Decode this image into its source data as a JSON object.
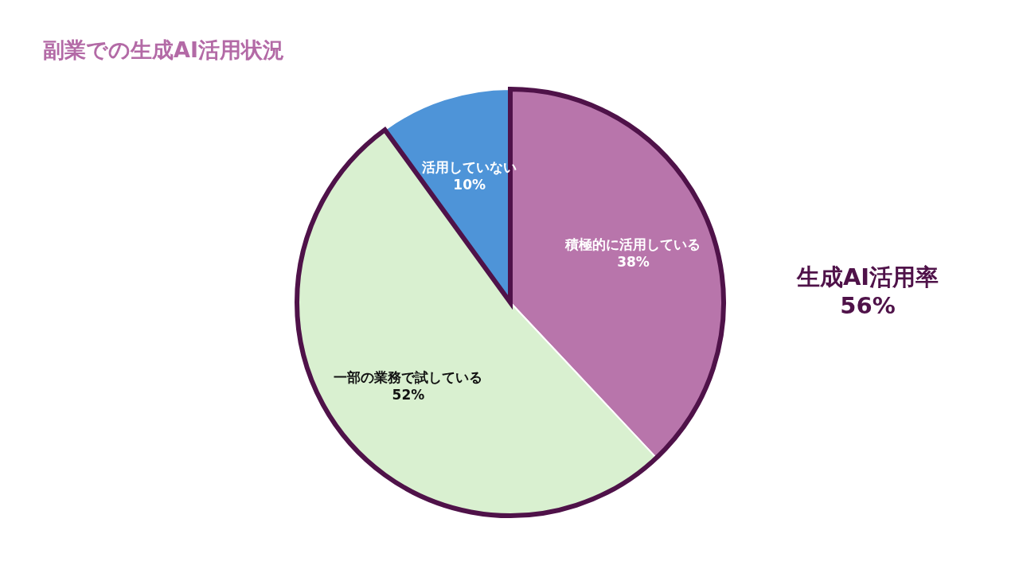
{
  "chart_data": {
    "type": "pie",
    "title": "副業での生成AI活用状況",
    "categories": [
      "積極的に活用している",
      "一部の業務で試している",
      "活用していない"
    ],
    "values": [
      38,
      52,
      10
    ],
    "colors": [
      "#b875ab",
      "#d9f0d0",
      "#4e94d8"
    ],
    "value_labels": [
      "38%",
      "52%",
      "10%"
    ],
    "annotations": [
      "生成AI活用率\n56%"
    ]
  }
}
